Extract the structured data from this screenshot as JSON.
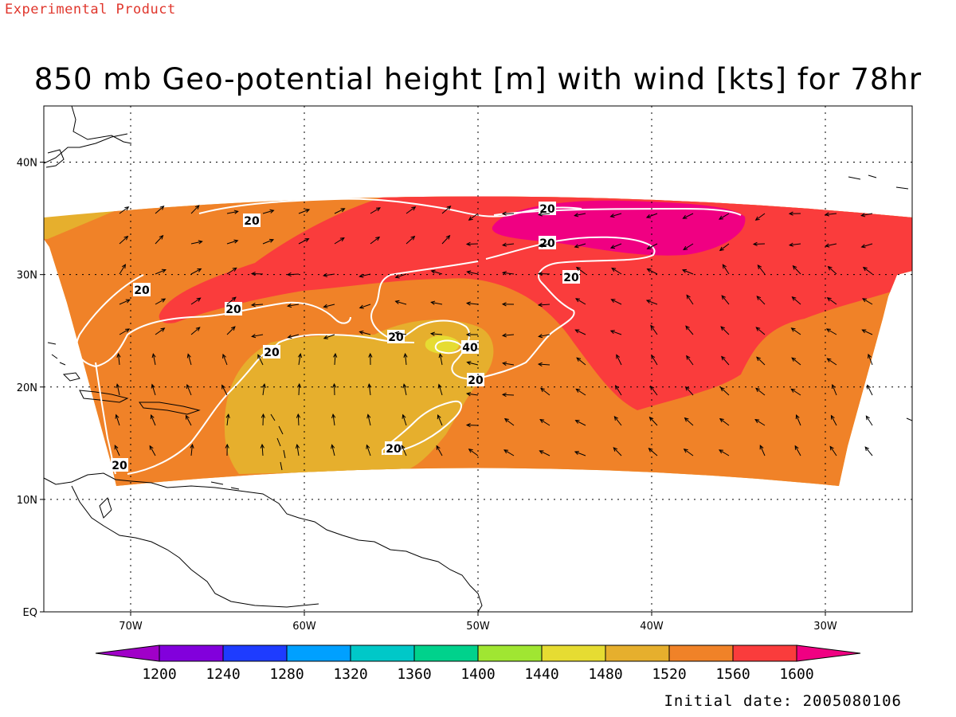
{
  "header": {
    "experimental_label": "Experimental Product",
    "title": "850 mb Geo-potential height [m] with wind [kts] for 78hr"
  },
  "footer": {
    "initial_date": "Initial date: 2005080106"
  },
  "axes": {
    "x_ticks": [
      {
        "value": -70,
        "label": "70W"
      },
      {
        "value": -60,
        "label": "60W"
      },
      {
        "value": -50,
        "label": "50W"
      },
      {
        "value": -40,
        "label": "40W"
      },
      {
        "value": -30,
        "label": "30W"
      }
    ],
    "y_ticks": [
      {
        "value": 0,
        "label": "EQ"
      },
      {
        "value": 10,
        "label": "10N"
      },
      {
        "value": 20,
        "label": "20N"
      },
      {
        "value": 30,
        "label": "30N"
      },
      {
        "value": 40,
        "label": "40N"
      }
    ],
    "lon_range": [
      -75,
      -25
    ],
    "lat_range": [
      0,
      45
    ],
    "grid": true
  },
  "colorbar": {
    "levels": [
      1200,
      1240,
      1280,
      1320,
      1360,
      1400,
      1440,
      1480,
      1520,
      1560,
      1600
    ],
    "colors": [
      "#a000c8",
      "#8200dc",
      "#1e3cff",
      "#00a0ff",
      "#00c8c8",
      "#00d28c",
      "#a0e632",
      "#e6dc32",
      "#e6af2d",
      "#f08228",
      "#fa3c3c",
      "#f00082"
    ]
  },
  "contour_labels": [
    "20",
    "20",
    "20",
    "20",
    "20",
    "20",
    "20",
    "40",
    "20",
    "20",
    "20"
  ],
  "legend_colors": {
    "h1480": "#e6dc32",
    "h1520": "#e6af2d",
    "h1560": "#f08228",
    "h1600": "#fa3c3c",
    "h1640": "#f00082"
  }
}
